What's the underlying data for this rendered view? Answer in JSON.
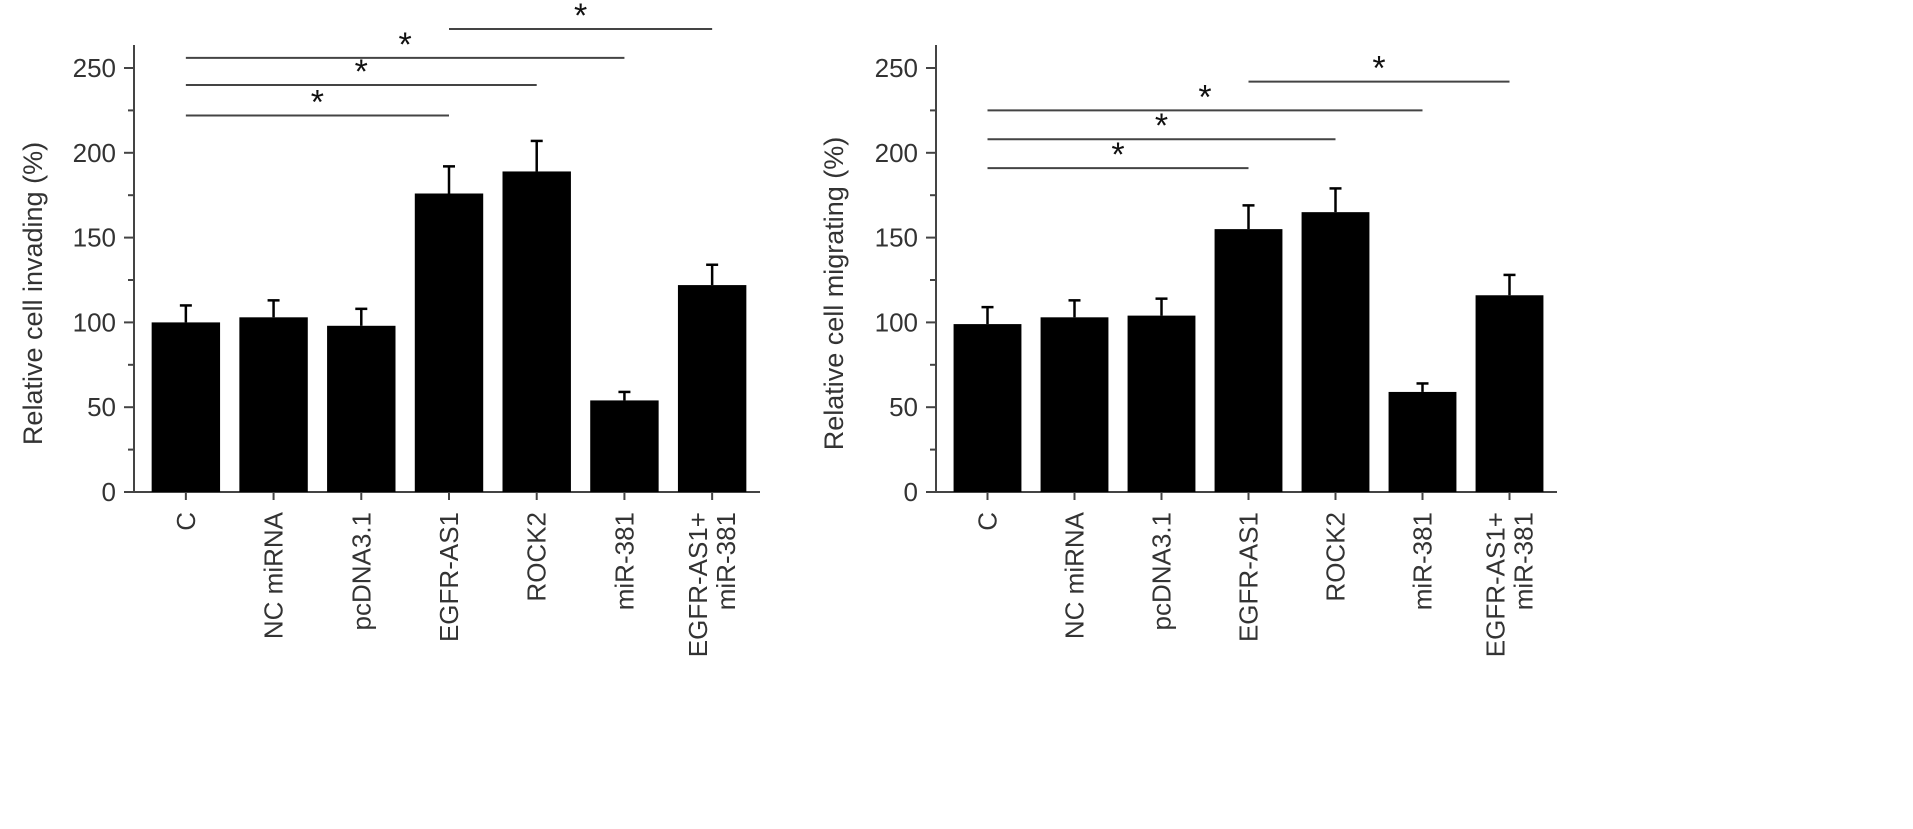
{
  "chart_data": [
    {
      "type": "bar",
      "ylabel": "Relative cell invading (%)",
      "ylim": [
        0,
        250
      ],
      "yticks": [
        0,
        50,
        100,
        150,
        200,
        250
      ],
      "categories": [
        [
          "C"
        ],
        [
          "NC miRNA"
        ],
        [
          "pcDNA3.1"
        ],
        [
          "EGFR-AS1"
        ],
        [
          "ROCK2"
        ],
        [
          "miR-381"
        ],
        [
          "EGFR-AS1+",
          "miR-381"
        ]
      ],
      "values": [
        100,
        103,
        98,
        176,
        189,
        54,
        122
      ],
      "errors": [
        10,
        10,
        10,
        16,
        18,
        5,
        12
      ],
      "significance": [
        {
          "from": 0,
          "to": 3,
          "label": "*",
          "y": 222
        },
        {
          "from": 0,
          "to": 4,
          "label": "*",
          "y": 240
        },
        {
          "from": 0,
          "to": 5,
          "label": "*",
          "y": 256
        },
        {
          "from": 3,
          "to": 6,
          "label": "*",
          "y": 273
        }
      ],
      "bar_color": "#000000"
    },
    {
      "type": "bar",
      "ylabel": "Relative cell migrating (%)",
      "ylim": [
        0,
        250
      ],
      "yticks": [
        0,
        50,
        100,
        150,
        200,
        250
      ],
      "categories": [
        [
          "C"
        ],
        [
          "NC miRNA"
        ],
        [
          "pcDNA3.1"
        ],
        [
          "EGFR-AS1"
        ],
        [
          "ROCK2"
        ],
        [
          "miR-381"
        ],
        [
          "EGFR-AS1+",
          "miR-381"
        ]
      ],
      "values": [
        99,
        103,
        104,
        155,
        165,
        59,
        116
      ],
      "errors": [
        10,
        10,
        10,
        14,
        14,
        5,
        12
      ],
      "significance": [
        {
          "from": 0,
          "to": 3,
          "label": "*",
          "y": 191
        },
        {
          "from": 0,
          "to": 4,
          "label": "*",
          "y": 208
        },
        {
          "from": 0,
          "to": 5,
          "label": "*",
          "y": 225
        },
        {
          "from": 3,
          "to": 6,
          "label": "*",
          "y": 242
        }
      ],
      "bar_color": "#000000"
    }
  ]
}
